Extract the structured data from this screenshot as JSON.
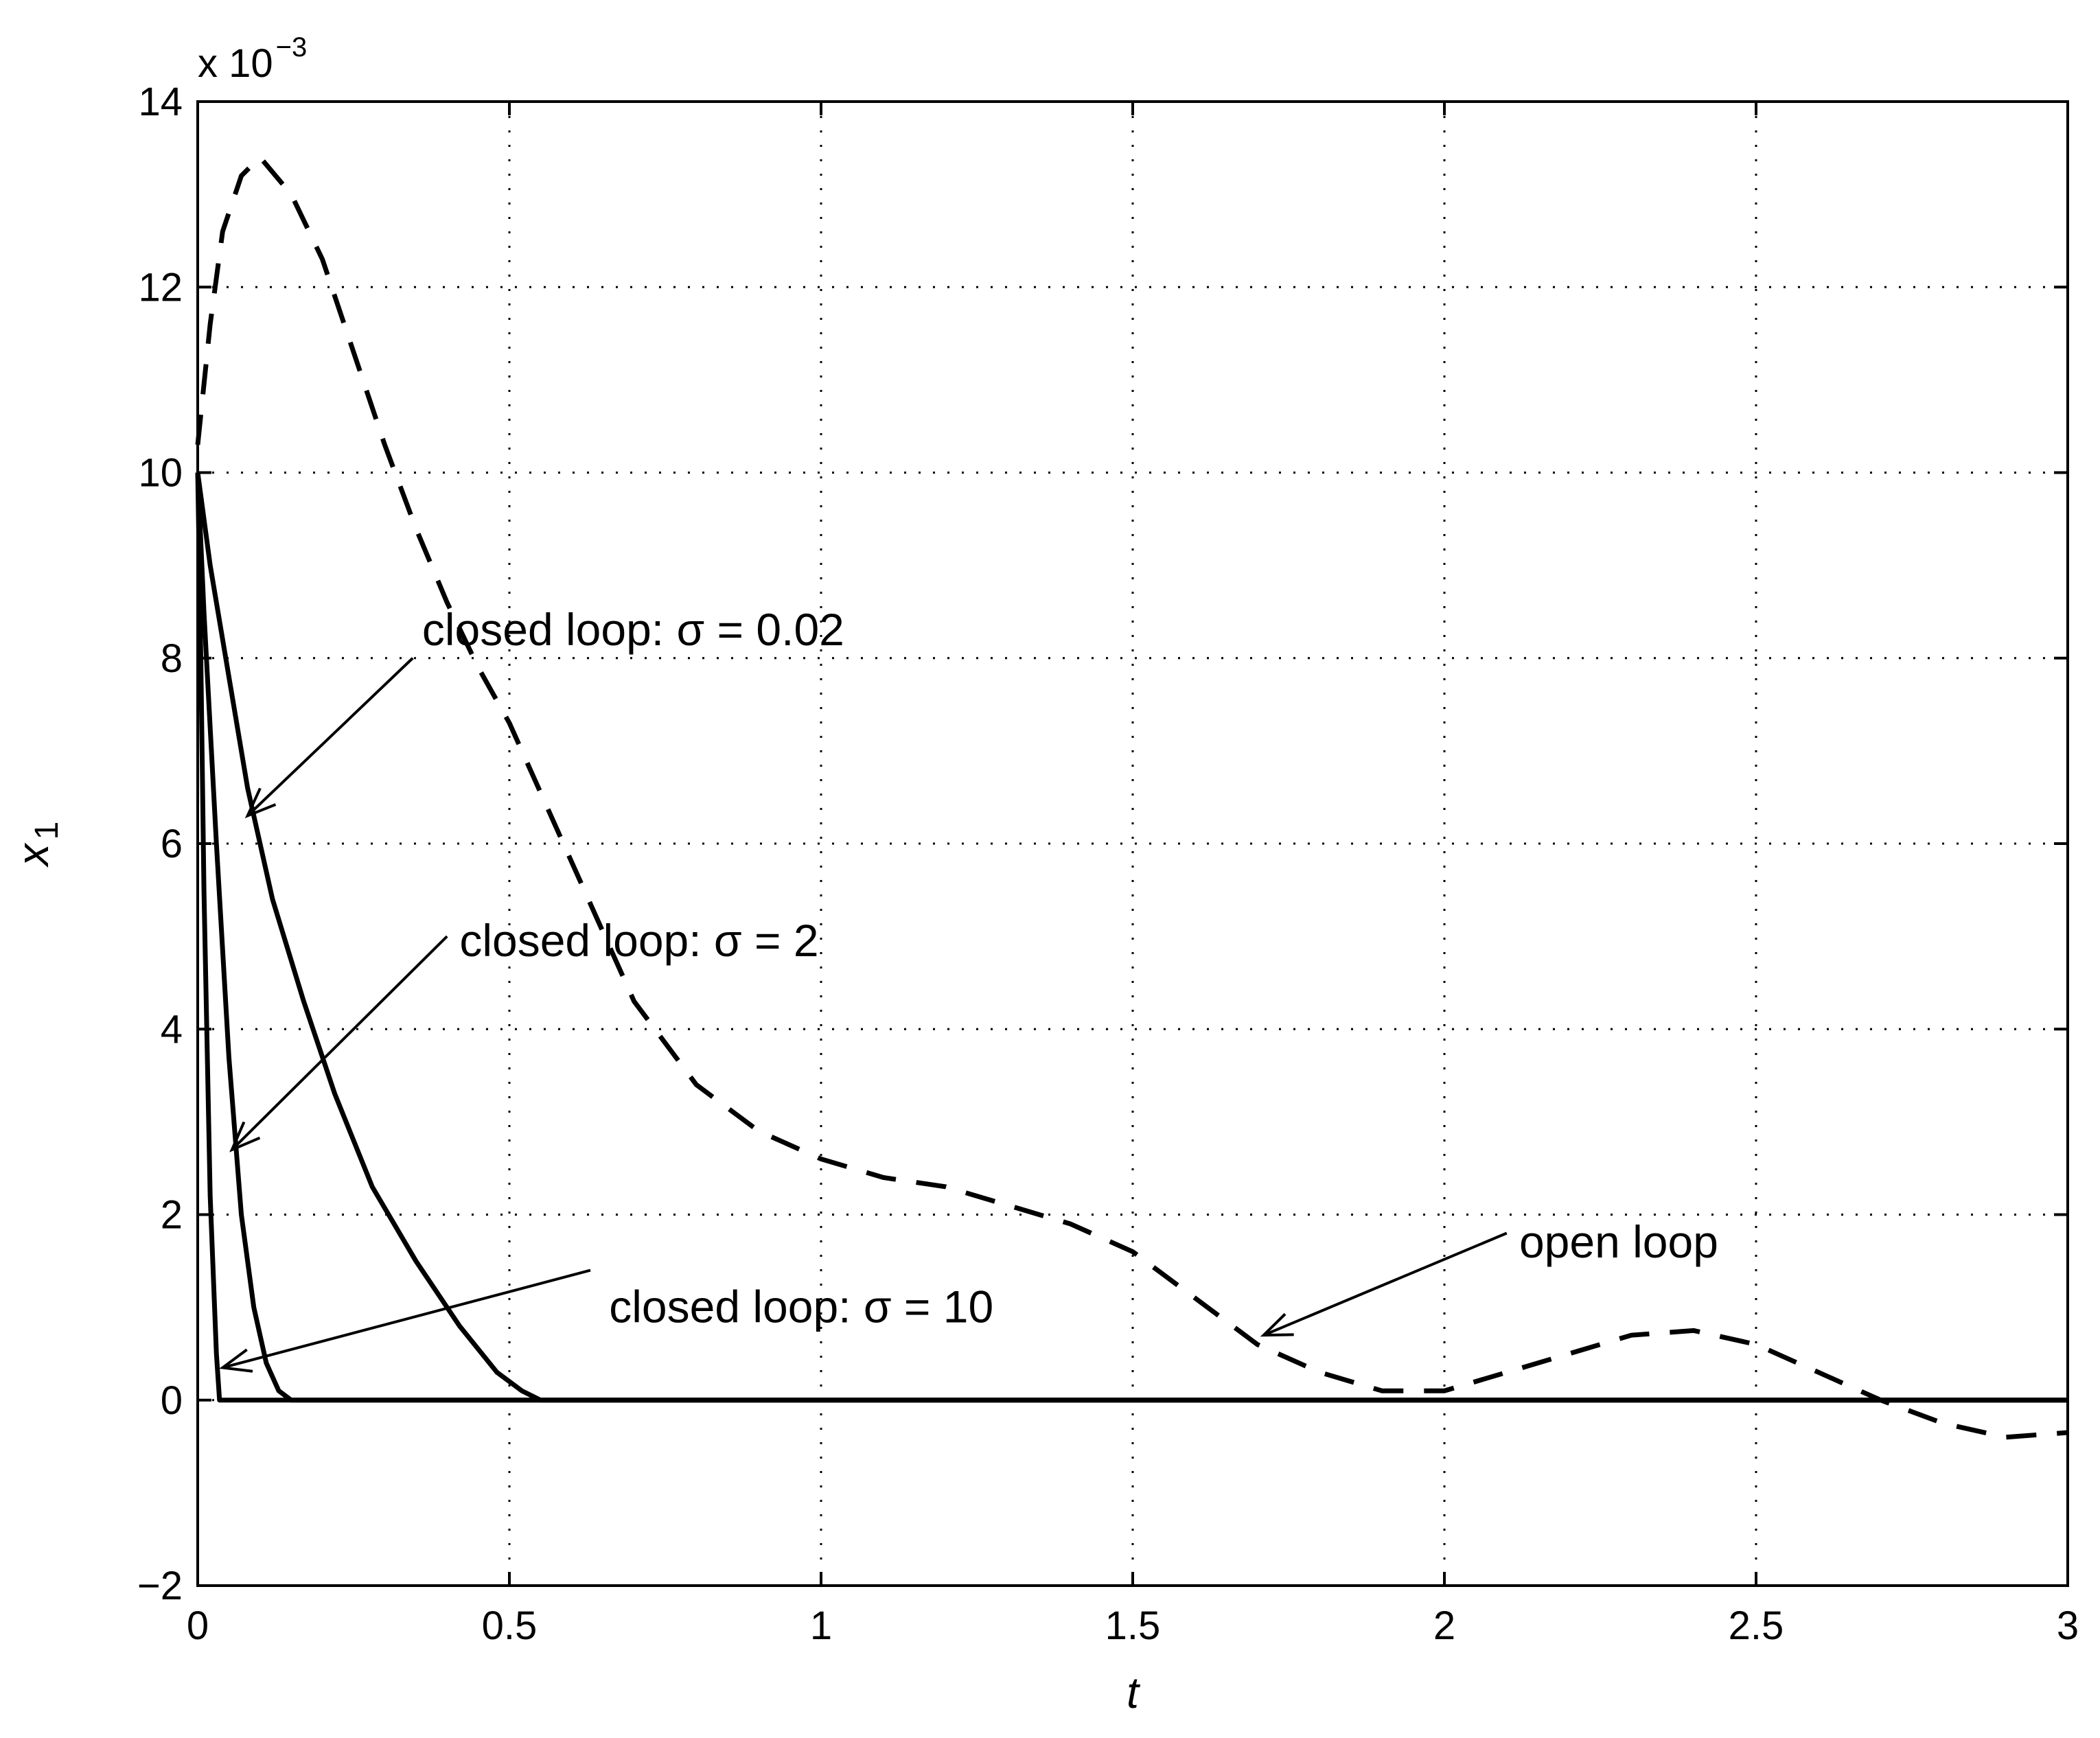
{
  "chart_data": {
    "type": "line",
    "xlabel": "t",
    "ylabel": "x",
    "ylabel_subscript": "1",
    "y_multiplier": "x 10",
    "y_multiplier_exponent": "−3",
    "xlim": [
      0,
      3
    ],
    "ylim": [
      -2,
      14
    ],
    "x_ticks": [
      0,
      0.5,
      1,
      1.5,
      2,
      2.5,
      3
    ],
    "x_tick_labels": [
      "0",
      "0.5",
      "1",
      "1.5",
      "2",
      "2.5",
      "3"
    ],
    "y_ticks": [
      -2,
      0,
      2,
      4,
      6,
      8,
      10,
      12,
      14
    ],
    "y_tick_labels": [
      "−2",
      "0",
      "2",
      "4",
      "6",
      "8",
      "10",
      "12",
      "14"
    ],
    "grid": true,
    "series": [
      {
        "style": "dashed",
        "x": [
          0,
          0.02,
          0.04,
          0.07,
          0.1,
          0.15,
          0.2,
          0.25,
          0.3,
          0.35,
          0.4,
          0.45,
          0.5,
          0.6,
          0.7,
          0.8,
          0.9,
          1.0,
          1.1,
          1.2,
          1.3,
          1.4,
          1.5,
          1.6,
          1.7,
          1.8,
          1.9,
          2.0,
          2.1,
          2.2,
          2.3,
          2.4,
          2.5,
          2.6,
          2.7,
          2.8,
          2.9,
          3.0
        ],
        "y": [
          10.3,
          11.6,
          12.6,
          13.2,
          13.4,
          13.0,
          12.3,
          11.3,
          10.3,
          9.4,
          8.6,
          7.9,
          7.3,
          5.8,
          4.3,
          3.4,
          2.9,
          2.6,
          2.4,
          2.3,
          2.1,
          1.9,
          1.6,
          1.1,
          0.6,
          0.3,
          0.1,
          0.1,
          0.3,
          0.5,
          0.7,
          0.75,
          0.6,
          0.3,
          0.0,
          -0.25,
          -0.4,
          -0.35
        ]
      },
      {
        "style": "solid",
        "x": [
          0,
          0.02,
          0.05,
          0.08,
          0.12,
          0.17,
          0.22,
          0.28,
          0.35,
          0.42,
          0.48,
          0.52,
          0.55,
          3.0
        ],
        "y": [
          10.0,
          9.0,
          7.8,
          6.6,
          5.4,
          4.3,
          3.3,
          2.3,
          1.5,
          0.8,
          0.3,
          0.1,
          0.0,
          0.0
        ]
      },
      {
        "style": "solid",
        "x": [
          0,
          0.01,
          0.03,
          0.05,
          0.07,
          0.09,
          0.11,
          0.13,
          0.15,
          3.0
        ],
        "y": [
          10.0,
          8.5,
          6.0,
          3.7,
          2.0,
          1.0,
          0.4,
          0.1,
          0.0,
          0.0
        ]
      },
      {
        "style": "solid",
        "x": [
          0,
          0.005,
          0.01,
          0.02,
          0.03,
          0.035,
          3.0
        ],
        "y": [
          10.0,
          8.0,
          5.5,
          2.2,
          0.5,
          0.0,
          0.0
        ]
      }
    ],
    "annotations": [
      {
        "text": "closed loop: σ = 0.02",
        "text_at": [
          0.36,
          8.3
        ],
        "arrow_from": [
          0.345,
          8.0
        ],
        "arrow_to": [
          0.08,
          6.3
        ]
      },
      {
        "text": "closed loop: σ = 2",
        "text_at": [
          0.42,
          4.95
        ],
        "arrow_from": [
          0.4,
          5.0
        ],
        "arrow_to": [
          0.055,
          2.7
        ]
      },
      {
        "text": "closed loop: σ = 10",
        "text_at": [
          0.66,
          1.0
        ],
        "arrow_from": [
          0.63,
          1.4
        ],
        "arrow_to": [
          0.04,
          0.35
        ]
      },
      {
        "text": "open loop",
        "text_at": [
          2.12,
          1.7
        ],
        "arrow_from": [
          2.1,
          1.8
        ],
        "arrow_to": [
          1.71,
          0.7
        ]
      }
    ]
  }
}
